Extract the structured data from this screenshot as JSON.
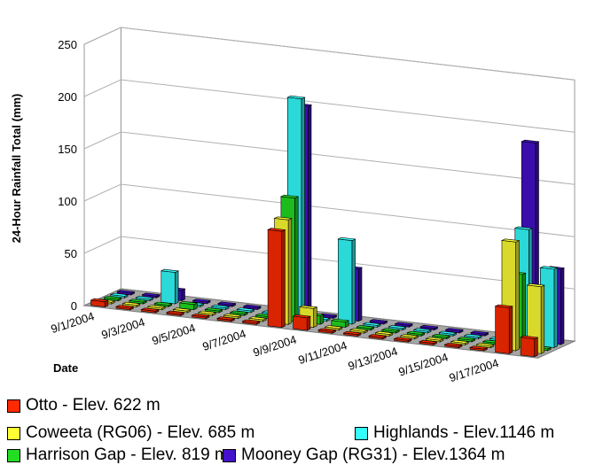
{
  "chart_data": {
    "type": "bar",
    "subtype": "3d-clustered-bar",
    "ylabel": "24-Hour Rainfall Total (mm)",
    "xlabel": "Date",
    "ylim": [
      0,
      250
    ],
    "yticks": [
      0,
      50,
      100,
      150,
      200,
      250
    ],
    "grid": true,
    "legend_position": "bottom",
    "categories": [
      "9/1/2004",
      "9/2/2004",
      "9/3/2004",
      "9/4/2004",
      "9/5/2004",
      "9/6/2004",
      "9/7/2004",
      "9/8/2004",
      "9/9/2004",
      "9/10/2004",
      "9/11/2004",
      "9/12/2004",
      "9/13/2004",
      "9/14/2004",
      "9/15/2004",
      "9/16/2004",
      "9/17/2004",
      "9/18/2004"
    ],
    "tick_labels": [
      "9/1/2004",
      "9/3/2004",
      "9/5/2004",
      "9/7/2004",
      "9/9/2004",
      "9/11/2004",
      "9/13/2004",
      "9/15/2004",
      "9/17/2004"
    ],
    "series": [
      {
        "name": "Otto - Elev. 622 m",
        "color": "#ff2a00",
        "values": [
          5,
          0,
          0,
          0,
          0,
          0,
          0,
          92,
          12,
          0,
          0,
          0,
          0,
          0,
          0,
          0,
          44,
          17
        ]
      },
      {
        "name": "Coweeta (RG06) - Elev. 685 m",
        "color": "#ffff33",
        "values": [
          0,
          0,
          0,
          0,
          0,
          0,
          0,
          100,
          18,
          0,
          0,
          0,
          0,
          0,
          0,
          0,
          104,
          64
        ]
      },
      {
        "name": "Harrison Gap - Elev. 819 m",
        "color": "#22dd22",
        "values": [
          0,
          0,
          0,
          5,
          0,
          0,
          0,
          118,
          8,
          5,
          0,
          0,
          0,
          0,
          0,
          0,
          70,
          0
        ]
      },
      {
        "name": "Highlands - Elev.1146 m",
        "color": "#33ffff",
        "values": [
          0,
          0,
          30,
          0,
          0,
          0,
          0,
          210,
          0,
          80,
          0,
          0,
          0,
          0,
          0,
          0,
          110,
          75
        ]
      },
      {
        "name": "Mooney Gap (RG31) - Elev.1364 m",
        "color": "#4411cc",
        "values": [
          0,
          0,
          10,
          0,
          0,
          0,
          0,
          200,
          0,
          50,
          0,
          0,
          0,
          0,
          0,
          0,
          190,
          72
        ]
      }
    ]
  }
}
